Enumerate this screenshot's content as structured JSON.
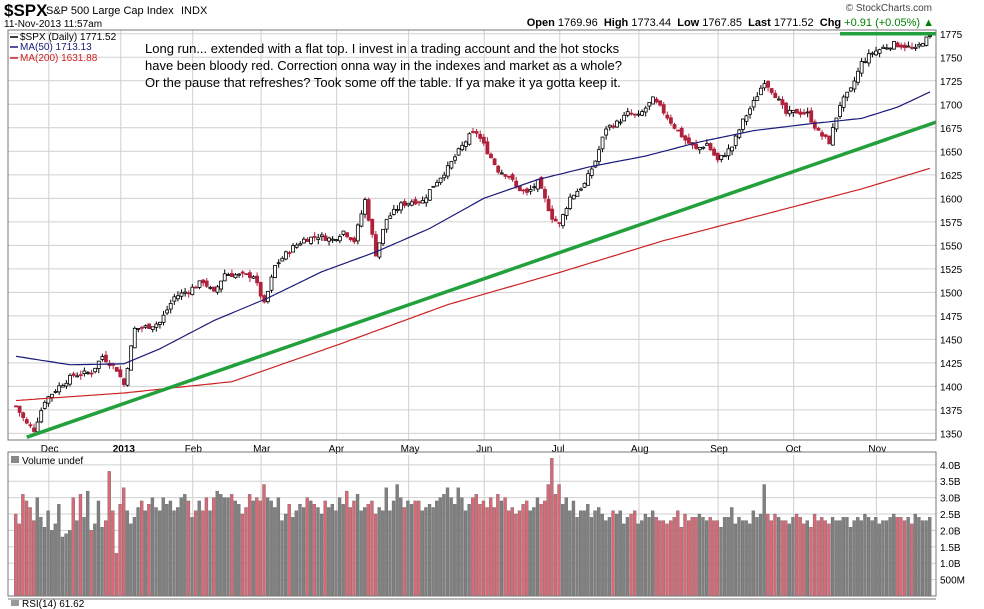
{
  "header": {
    "symbol": "$SPX",
    "name": "S&P 500 Large Cap Index",
    "exchange": "INDX",
    "datetime": "11-Nov-2013 11:57am",
    "brand": "© StockCharts.com",
    "open_label": "Open",
    "open": "1769.96",
    "high_label": "High",
    "high": "1773.44",
    "low_label": "Low",
    "low": "1767.85",
    "last_label": "Last",
    "last": "1771.52",
    "chg_label": "Chg",
    "chg": "+0.91 (+0.05%)"
  },
  "legend": {
    "price": "$SPX (Daily) 1771.52",
    "ma50": "MA(50) 1713.13",
    "ma200": "MA(200) 1631.88",
    "volume": "Volume undef",
    "rsi": "RSI(14) 61.62"
  },
  "annotation": [
    "Long run... extended with a flat top.   I invest in a trading account and the hot stocks",
    "have been bloody red.  Correction onna way in the indexes and market as a whole?",
    "Or the pause that refreshes?  Took some off the table. If ya make it ya gotta keep it."
  ],
  "colors": {
    "up": "#000000",
    "down": "#b0213c",
    "ma50": "#1a1a7a",
    "ma200": "#cc2222",
    "trendline": "#22a03c",
    "vol_up": "#808080",
    "vol_down": "#d86a78",
    "grid": "#d0d0d0"
  },
  "chart_data": [
    {
      "type": "candlestick",
      "title": "$SPX (Daily)",
      "x_labels": [
        "Dec",
        "2013",
        "Feb",
        "Mar",
        "Apr",
        "May",
        "Jun",
        "Jul",
        "Aug",
        "Sep",
        "Oct",
        "Nov"
      ],
      "y_ticks": [
        1350,
        1375,
        1400,
        1425,
        1450,
        1475,
        1500,
        1525,
        1550,
        1575,
        1600,
        1625,
        1650,
        1675,
        1700,
        1725,
        1750,
        1775
      ],
      "ylim": [
        1343,
        1779
      ],
      "close_path": [
        [
          0,
          1379
        ],
        [
          3,
          1360
        ],
        [
          5,
          1354
        ],
        [
          8,
          1385
        ],
        [
          12,
          1400
        ],
        [
          16,
          1412
        ],
        [
          21,
          1415
        ],
        [
          24,
          1432
        ],
        [
          28,
          1418
        ],
        [
          30,
          1402
        ],
        [
          33,
          1461
        ],
        [
          37,
          1464
        ],
        [
          40,
          1468
        ],
        [
          44,
          1495
        ],
        [
          48,
          1502
        ],
        [
          52,
          1512
        ],
        [
          55,
          1499
        ],
        [
          58,
          1520
        ],
        [
          62,
          1518
        ],
        [
          66,
          1518
        ],
        [
          69,
          1487
        ],
        [
          72,
          1528
        ],
        [
          76,
          1545
        ],
        [
          80,
          1556
        ],
        [
          84,
          1560
        ],
        [
          88,
          1556
        ],
        [
          91,
          1565
        ],
        [
          94,
          1555
        ],
        [
          97,
          1598
        ],
        [
          100,
          1541
        ],
        [
          103,
          1578
        ],
        [
          107,
          1593
        ],
        [
          110,
          1597
        ],
        [
          113,
          1597
        ],
        [
          116,
          1614
        ],
        [
          120,
          1632
        ],
        [
          123,
          1650
        ],
        [
          126,
          1666
        ],
        [
          128,
          1670
        ],
        [
          131,
          1650
        ],
        [
          134,
          1630
        ],
        [
          137,
          1624
        ],
        [
          139,
          1612
        ],
        [
          142,
          1605
        ],
        [
          145,
          1617
        ],
        [
          149,
          1580
        ],
        [
          151,
          1572
        ],
        [
          154,
          1601
        ],
        [
          158,
          1615
        ],
        [
          161,
          1640
        ],
        [
          164,
          1675
        ],
        [
          167,
          1680
        ],
        [
          170,
          1690
        ],
        [
          173,
          1687
        ],
        [
          177,
          1705
        ],
        [
          180,
          1692
        ],
        [
          183,
          1676
        ],
        [
          186,
          1662
        ],
        [
          189,
          1652
        ],
        [
          192,
          1658
        ],
        [
          195,
          1640
        ],
        [
          199,
          1655
        ],
        [
          202,
          1682
        ],
        [
          205,
          1702
        ],
        [
          208,
          1725
        ],
        [
          211,
          1710
        ],
        [
          214,
          1690
        ],
        [
          217,
          1692
        ],
        [
          220,
          1690
        ],
        [
          223,
          1670
        ],
        [
          226,
          1660
        ],
        [
          229,
          1700
        ],
        [
          232,
          1715
        ],
        [
          235,
          1744
        ],
        [
          238,
          1755
        ],
        [
          241,
          1760
        ],
        [
          244,
          1764
        ],
        [
          247,
          1762
        ],
        [
          250,
          1758
        ],
        [
          252,
          1767
        ],
        [
          254,
          1771.52
        ]
      ],
      "ma50_path": [
        [
          0,
          1432
        ],
        [
          15,
          1423
        ],
        [
          30,
          1424
        ],
        [
          40,
          1440
        ],
        [
          55,
          1470
        ],
        [
          70,
          1494
        ],
        [
          85,
          1522
        ],
        [
          100,
          1543
        ],
        [
          115,
          1568
        ],
        [
          130,
          1600
        ],
        [
          145,
          1620
        ],
        [
          160,
          1634
        ],
        [
          175,
          1645
        ],
        [
          190,
          1660
        ],
        [
          205,
          1672
        ],
        [
          220,
          1679
        ],
        [
          235,
          1685
        ],
        [
          245,
          1697
        ],
        [
          254,
          1713.13
        ]
      ],
      "ma200_path": [
        [
          0,
          1385
        ],
        [
          30,
          1393
        ],
        [
          60,
          1405
        ],
        [
          90,
          1445
        ],
        [
          120,
          1487
        ],
        [
          150,
          1520
        ],
        [
          180,
          1555
        ],
        [
          210,
          1585
        ],
        [
          235,
          1610
        ],
        [
          254,
          1631.88
        ]
      ],
      "annotations": [
        "rising trendline",
        "flat top"
      ]
    },
    {
      "type": "bar",
      "title": "Volume",
      "y_ticks": [
        "500M",
        "1.0B",
        "1.5B",
        "2.0B",
        "2.5B",
        "3.0B",
        "3.5B",
        "4.0B"
      ],
      "ylim": [
        0,
        4.3
      ],
      "values_bn": [
        2.5,
        2.2,
        3.1,
        2.9,
        2.7,
        2.3,
        3.0,
        2.4,
        2.1,
        2.6,
        2.0,
        2.2,
        2.8,
        1.8,
        1.9,
        2.0,
        3.0,
        2.3,
        3.1,
        2.4,
        3.2,
        2.0,
        2.2,
        2.9,
        2.1,
        2.3,
        3.8,
        2.6,
        1.3,
        2.8,
        3.3,
        2.6,
        2.2,
        2.4,
        2.7,
        2.9,
        2.6,
        2.8,
        3.0,
        2.7,
        2.6,
        3.0,
        2.8,
        2.9,
        2.6,
        2.7,
        3.0,
        3.1,
        2.9,
        2.4,
        2.6,
        2.9,
        2.6,
        3.0,
        2.6,
        3.0,
        3.2,
        3.1,
        3.0,
        3.0,
        3.1,
        2.9,
        2.8,
        2.5,
        2.7,
        3.1,
        2.9,
        3.0,
        2.9,
        3.4,
        3.0,
        2.9,
        2.7,
        3.0,
        2.3,
        2.5,
        2.8,
        2.4,
        2.6,
        2.8,
        2.7,
        3.0,
        2.9,
        2.8,
        2.7,
        2.5,
        2.9,
        2.7,
        2.8,
        2.6,
        3.0,
        2.8,
        3.2,
        2.7,
        2.9,
        3.1,
        2.6,
        2.7,
        2.8,
        2.9,
        2.5,
        2.7,
        2.6,
        3.3,
        2.6,
        2.9,
        3.4,
        3.0,
        2.7,
        2.9,
        2.8,
        2.9,
        2.9,
        2.6,
        2.7,
        2.8,
        2.7,
        2.9,
        3.0,
        3.1,
        3.3,
        3.0,
        2.8,
        3.3,
        3.0,
        2.6,
        2.8,
        3.0,
        3.1,
        2.8,
        2.9,
        2.7,
        3.0,
        2.7,
        3.1,
        2.9,
        3.0,
        2.6,
        2.7,
        2.5,
        2.6,
        2.8,
        2.9,
        2.6,
        2.7,
        3.0,
        2.8,
        2.9,
        3.4,
        4.2,
        3.1,
        3.4,
        2.8,
        3.0,
        2.6,
        2.9,
        2.4,
        2.6,
        2.6,
        2.8,
        2.4,
        2.6,
        2.7,
        2.5,
        2.3,
        2.4,
        2.6,
        2.5,
        2.6,
        2.2,
        2.4,
        2.5,
        2.6,
        2.2,
        2.3,
        2.5,
        2.4,
        2.6,
        2.4,
        2.3,
        2.3,
        2.2,
        2.3,
        2.4,
        2.6,
        2.1,
        2.5,
        2.3,
        2.4,
        2.4,
        2.5,
        2.4,
        2.3,
        2.4,
        2.3,
        2.3,
        2.1,
        2.4,
        2.4,
        2.7,
        2.2,
        2.4,
        2.3,
        2.3,
        2.2,
        2.6,
        2.4,
        2.5,
        3.4,
        2.5,
        2.3,
        2.5,
        2.4,
        2.3,
        2.3,
        2.2,
        2.4,
        2.5,
        2.4,
        2.2,
        2.3,
        2.1,
        2.5,
        2.3,
        2.4,
        2.3,
        2.2,
        2.4,
        2.3,
        2.3,
        2.4,
        2.4,
        2.1,
        2.3,
        2.4,
        2.3,
        2.5,
        2.4,
        2.3,
        2.4,
        2.2,
        2.3,
        2.3,
        2.4,
        2.5,
        2.4,
        2.4,
        2.3,
        2.4,
        2.2,
        2.5,
        2.4,
        2.3,
        2.3,
        2.4,
        2.5
      ]
    }
  ]
}
